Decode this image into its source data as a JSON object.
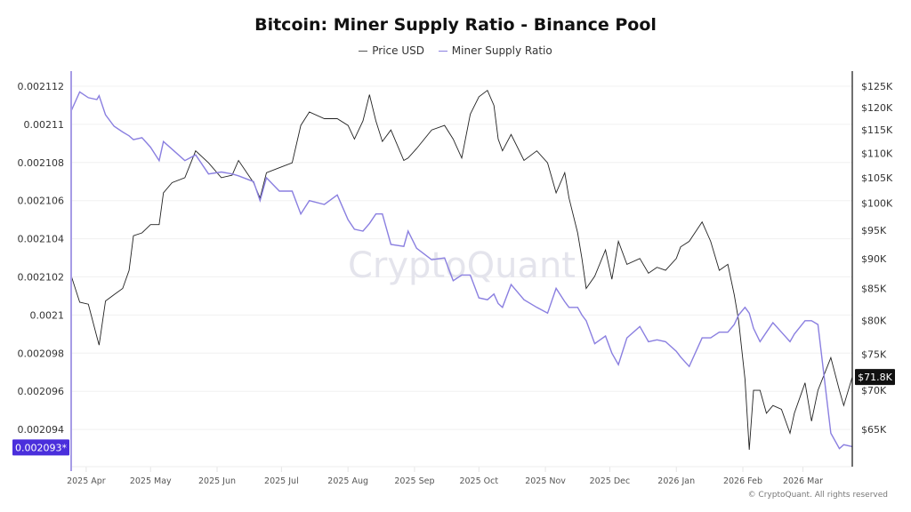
{
  "chart_data": {
    "type": "line",
    "title": "Bitcoin: Miner Supply Ratio - Binance Pool",
    "legend_placement": "top-center",
    "grid": true,
    "x_range": [
      "2025-03-25",
      "2026-03-24"
    ],
    "x_ticks": [
      "2025 Apr",
      "2025 May",
      "2025 Jun",
      "2025 Jul",
      "2025 Aug",
      "2025 Sep",
      "2025 Oct",
      "2025 Nov",
      "2025 Dec",
      "2026 Jan",
      "2026 Feb",
      "2026 Mar"
    ],
    "x_tick_dates": [
      "2025-04-01",
      "2025-05-01",
      "2025-06-01",
      "2025-07-01",
      "2025-08-01",
      "2025-09-01",
      "2025-10-01",
      "2025-11-01",
      "2025-12-01",
      "2026-01-01",
      "2026-02-01",
      "2026-03-01"
    ],
    "y_left": {
      "range": [
        0.0020925,
        0.0021125
      ],
      "ticks": [
        "0.002112",
        "0.00211",
        "0.002108",
        "0.002106",
        "0.002104",
        "0.002102",
        "0.0021",
        "0.002098",
        "0.002096",
        "0.002094"
      ],
      "tick_values": [
        0.002112,
        0.00211,
        0.002108,
        0.002106,
        0.002104,
        0.002102,
        0.0021,
        0.002098,
        0.002096,
        0.002094
      ],
      "current_label": "0.002093*",
      "current_value": 0.0020931
    },
    "y_right": {
      "scale": "log",
      "ticks": [
        "$125K",
        "$120K",
        "$115K",
        "$110K",
        "$105K",
        "$100K",
        "$95K",
        "$90K",
        "$85K",
        "$80K",
        "$75K",
        "$70K",
        "$65K"
      ],
      "tick_values": [
        125,
        120,
        115,
        110,
        105,
        100,
        95,
        90,
        85,
        80,
        75,
        70,
        65
      ],
      "unit": "USD thousands",
      "current_label": "$71.8K",
      "current_value": 71.8
    },
    "dates": [
      "2025-03-25",
      "2025-03-29",
      "2025-04-02",
      "2025-04-06",
      "2025-04-07",
      "2025-04-10",
      "2025-04-14",
      "2025-04-18",
      "2025-04-21",
      "2025-04-23",
      "2025-04-27",
      "2025-05-01",
      "2025-05-05",
      "2025-05-07",
      "2025-05-11",
      "2025-05-17",
      "2025-05-22",
      "2025-05-28",
      "2025-06-03",
      "2025-06-08",
      "2025-06-11",
      "2025-06-18",
      "2025-06-21",
      "2025-06-24",
      "2025-06-30",
      "2025-07-06",
      "2025-07-10",
      "2025-07-14",
      "2025-07-21",
      "2025-07-27",
      "2025-08-01",
      "2025-08-04",
      "2025-08-08",
      "2025-08-11",
      "2025-08-14",
      "2025-08-17",
      "2025-08-21",
      "2025-08-27",
      "2025-08-29",
      "2025-09-02",
      "2025-09-09",
      "2025-09-15",
      "2025-09-19",
      "2025-09-23",
      "2025-09-27",
      "2025-10-01",
      "2025-10-05",
      "2025-10-08",
      "2025-10-10",
      "2025-10-12",
      "2025-10-16",
      "2025-10-22",
      "2025-10-28",
      "2025-11-02",
      "2025-11-06",
      "2025-11-10",
      "2025-11-12",
      "2025-11-16",
      "2025-11-18",
      "2025-11-20",
      "2025-11-24",
      "2025-11-29",
      "2025-12-02",
      "2025-12-05",
      "2025-12-09",
      "2025-12-15",
      "2025-12-19",
      "2025-12-23",
      "2025-12-27",
      "2026-01-01",
      "2026-01-03",
      "2026-01-07",
      "2026-01-13",
      "2026-01-17",
      "2026-01-21",
      "2026-01-25",
      "2026-01-28",
      "2026-01-30",
      "2026-02-02",
      "2026-02-04",
      "2026-02-06",
      "2026-02-09",
      "2026-02-12",
      "2026-02-15",
      "2026-02-19",
      "2026-02-23",
      "2026-02-25",
      "2026-03-02",
      "2026-03-05",
      "2026-03-08",
      "2026-03-14",
      "2026-03-18",
      "2026-03-20",
      "2026-03-24"
    ],
    "series": [
      {
        "name": "Price USD",
        "color": "#222222",
        "axis": "right",
        "unit": "K",
        "values": [
          87.1,
          82.8,
          82.5,
          77.5,
          76.3,
          83,
          84,
          85,
          88,
          94,
          94.5,
          96,
          96,
          102,
          104,
          105,
          110.5,
          108,
          105,
          105.5,
          108.5,
          104,
          101,
          106,
          107,
          108,
          116,
          119,
          117.5,
          117.5,
          116,
          113,
          117,
          123,
          117,
          112.5,
          115,
          108.5,
          109,
          111,
          115,
          116,
          113,
          109,
          118.5,
          122.5,
          124,
          120.5,
          113,
          110.5,
          114,
          108.5,
          110.5,
          108,
          102,
          106,
          101,
          94.5,
          90,
          85,
          87,
          91.5,
          86.5,
          93,
          89,
          90,
          87.5,
          88.5,
          88,
          90,
          92,
          93,
          96.5,
          93,
          88,
          89,
          84,
          80,
          71.5,
          62.5,
          70,
          70,
          67,
          68,
          67.5,
          64.5,
          67,
          71,
          66,
          70,
          74.5,
          70,
          68,
          71.8
        ]
      },
      {
        "name": "Miner Supply Ratio",
        "color": "#8a7fe0",
        "axis": "left",
        "values": [
          0.0021107,
          0.0021117,
          0.0021114,
          0.0021113,
          0.0021115,
          0.0021105,
          0.0021099,
          0.0021096,
          0.0021094,
          0.0021092,
          0.0021093,
          0.0021088,
          0.0021081,
          0.0021091,
          0.0021087,
          0.0021081,
          0.0021084,
          0.0021074,
          0.0021075,
          0.0021074,
          0.0021073,
          0.002107,
          0.002106,
          0.0021072,
          0.0021065,
          0.0021065,
          0.0021053,
          0.002106,
          0.0021058,
          0.0021063,
          0.002105,
          0.0021045,
          0.0021044,
          0.0021048,
          0.0021053,
          0.0021053,
          0.0021037,
          0.0021036,
          0.0021044,
          0.0021035,
          0.0021029,
          0.002103,
          0.0021018,
          0.0021021,
          0.0021021,
          0.0021009,
          0.0021008,
          0.0021011,
          0.0021006,
          0.0021004,
          0.0021016,
          0.0021008,
          0.0021004,
          0.0021001,
          0.0021014,
          0.0021007,
          0.0021004,
          0.0021004,
          0.0021,
          0.0020997,
          0.0020985,
          0.0020989,
          0.002098,
          0.0020974,
          0.0020988,
          0.0020994,
          0.0020986,
          0.0020987,
          0.0020986,
          0.0020981,
          0.0020978,
          0.0020973,
          0.0020988,
          0.0020988,
          0.0020991,
          0.0020991,
          0.0020995,
          0.0021,
          0.0021004,
          0.0021001,
          0.0020993,
          0.0020986,
          0.0020991,
          0.0020996,
          0.0020991,
          0.0020986,
          0.002099,
          0.0020997,
          0.0020997,
          0.0020995,
          0.0020938,
          0.002093,
          0.0020932,
          0.0020931
        ]
      }
    ],
    "left_badge_color": "#4a2fdc",
    "right_badge_color": "#111111",
    "watermark": "CryptoQuant"
  },
  "footer": "© CryptoQuant. All rights reserved"
}
